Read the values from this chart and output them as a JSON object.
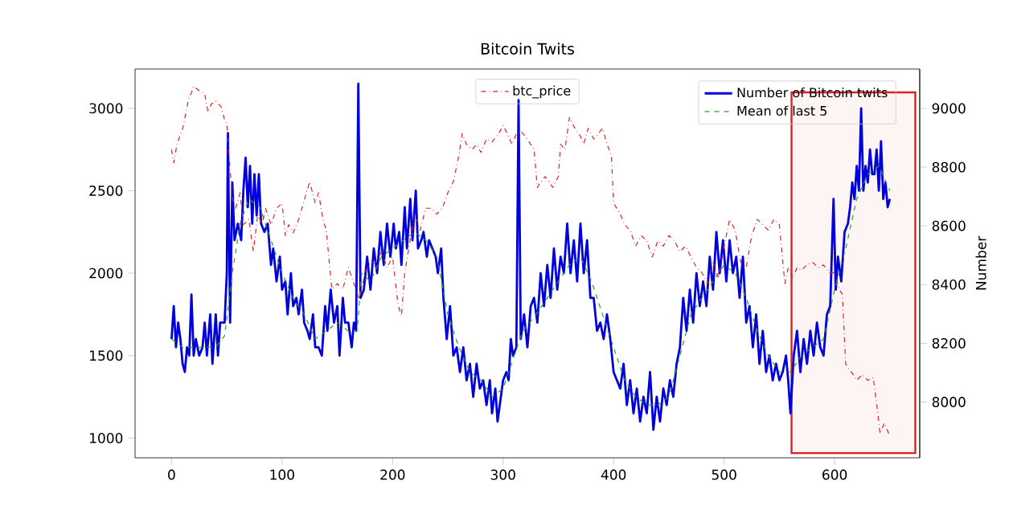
{
  "chart_data": {
    "type": "line",
    "title": "Bitcoin Twits",
    "y2label": "Number",
    "legend": "top right",
    "xlim": [
      -33,
      677
    ],
    "ylim": [
      880,
      3238
    ],
    "y2lim": [
      7810,
      9134
    ],
    "xticks": [
      0,
      100,
      200,
      300,
      400,
      500,
      600
    ],
    "yticks": [
      1000,
      1500,
      2000,
      2500,
      3000
    ],
    "y2ticks": [
      8000,
      8200,
      8400,
      8600,
      8800,
      9000
    ],
    "bands": [
      {
        "axis": "x",
        "from": 561,
        "to": 673,
        "color": "#e02020"
      }
    ],
    "series": [
      {
        "name": "btc_price",
        "color": "#d62728",
        "axis": "y2",
        "line_style": "dashdot",
        "x": [
          0,
          2,
          5,
          10,
          15,
          20,
          25,
          30,
          33,
          36,
          40,
          45,
          48,
          50,
          52,
          55,
          58,
          62,
          65,
          70,
          74,
          78,
          82,
          85,
          90,
          95,
          100,
          103,
          106,
          110,
          115,
          118,
          122,
          125,
          130,
          133,
          137,
          140,
          145,
          150,
          155,
          160,
          165,
          170,
          175,
          180,
          185,
          190,
          195,
          200,
          205,
          208,
          211,
          215,
          218,
          222,
          225,
          230,
          235,
          240,
          245,
          250,
          255,
          260,
          263,
          267,
          272,
          276,
          280,
          285,
          290,
          296,
          300,
          305,
          308,
          312,
          316,
          320,
          325,
          328,
          331,
          334,
          338,
          345,
          350,
          352,
          356,
          360,
          365,
          370,
          373,
          377,
          382,
          386,
          390,
          394,
          398,
          400,
          403,
          406,
          410,
          415,
          420,
          425,
          430,
          435,
          440,
          445,
          450,
          455,
          460,
          465,
          470,
          475,
          480,
          485,
          490,
          495,
          500,
          505,
          510,
          515,
          520,
          525,
          530,
          535,
          540,
          545,
          550,
          555,
          558,
          562,
          566,
          570,
          575,
          580,
          585,
          590,
          595,
          600,
          604,
          607,
          610,
          613,
          617,
          620,
          625,
          630,
          635,
          639,
          641,
          645,
          650
        ],
        "values": [
          8860,
          8815,
          8880,
          8930,
          9024,
          9075,
          9060,
          9050,
          8987,
          9015,
          9024,
          9005,
          8960,
          8950,
          8840,
          8695,
          8660,
          8713,
          8604,
          8622,
          8512,
          8640,
          8604,
          8660,
          8604,
          8660,
          8677,
          8567,
          8604,
          8576,
          8622,
          8660,
          8713,
          8750,
          8677,
          8713,
          8622,
          8585,
          8385,
          8403,
          8385,
          8458,
          8403,
          8348,
          8440,
          8476,
          8476,
          8512,
          8458,
          8494,
          8330,
          8293,
          8440,
          8530,
          8604,
          8622,
          8585,
          8660,
          8660,
          8640,
          8660,
          8713,
          8750,
          8841,
          8914,
          8877,
          8860,
          8877,
          8850,
          8896,
          8886,
          8914,
          8942,
          8905,
          8877,
          8914,
          8923,
          8905,
          8877,
          8860,
          8730,
          8750,
          8768,
          8731,
          8768,
          8878,
          8860,
          8969,
          8932,
          8905,
          8878,
          8932,
          8896,
          8914,
          8932,
          8878,
          8841,
          8677,
          8659,
          8640,
          8604,
          8585,
          8531,
          8567,
          8549,
          8494,
          8549,
          8531,
          8567,
          8549,
          8512,
          8531,
          8494,
          8458,
          8440,
          8403,
          8476,
          8421,
          8531,
          8622,
          8585,
          8476,
          8458,
          8567,
          8622,
          8604,
          8585,
          8622,
          8604,
          8403,
          8458,
          8421,
          8458,
          8449,
          8467,
          8476,
          8458,
          8467,
          8440,
          8440,
          8385,
          8367,
          8129,
          8111,
          8093,
          8074,
          8093,
          8074,
          8083,
          7965,
          7892,
          7928,
          7883
        ]
      },
      {
        "name": "Number of Bitcoin twits",
        "color": "#0000dd",
        "line_style": "solid",
        "x": [
          0,
          2,
          4,
          6,
          8,
          10,
          12,
          14,
          16,
          18,
          20,
          22,
          25,
          28,
          30,
          32,
          35,
          37,
          40,
          42,
          44,
          46,
          48,
          50,
          51,
          53,
          55,
          57,
          60,
          63,
          65,
          67,
          69,
          71,
          73,
          75,
          77,
          79,
          81,
          84,
          87,
          90,
          92,
          95,
          98,
          100,
          103,
          105,
          108,
          110,
          113,
          115,
          118,
          120,
          123,
          125,
          128,
          130,
          133,
          136,
          139,
          141,
          144,
          147,
          150,
          152,
          155,
          157,
          160,
          163,
          165,
          167,
          169,
          171,
          174,
          177,
          180,
          183,
          186,
          189,
          192,
          195,
          198,
          201,
          203,
          206,
          208,
          211,
          213,
          216,
          218,
          221,
          223,
          226,
          228,
          231,
          233,
          236,
          239,
          241,
          244,
          246,
          249,
          252,
          255,
          258,
          261,
          264,
          267,
          270,
          273,
          276,
          279,
          282,
          285,
          288,
          290,
          293,
          295,
          298,
          300,
          303,
          305,
          307,
          309,
          312,
          314,
          316,
          319,
          322,
          325,
          328,
          331,
          334,
          337,
          340,
          343,
          346,
          349,
          352,
          355,
          358,
          361,
          364,
          367,
          370,
          373,
          376,
          379,
          382,
          385,
          388,
          391,
          394,
          397,
          400,
          403,
          406,
          409,
          412,
          415,
          418,
          421,
          424,
          427,
          430,
          433,
          436,
          439,
          442,
          445,
          448,
          451,
          454,
          457,
          460,
          463,
          466,
          469,
          472,
          475,
          478,
          481,
          484,
          487,
          490,
          493,
          496,
          499,
          502,
          505,
          508,
          511,
          514,
          517,
          520,
          523,
          526,
          529,
          532,
          535,
          538,
          541,
          544,
          547,
          550,
          553,
          556,
          558,
          560,
          563,
          566,
          569,
          572,
          575,
          578,
          581,
          584,
          587,
          590,
          593,
          596,
          599,
          601,
          603,
          606,
          609,
          612,
          614,
          616,
          618,
          620,
          622,
          624,
          626,
          628,
          630,
          632,
          634,
          636,
          638,
          640,
          642,
          644,
          646,
          648,
          650
        ],
        "values": [
          1600,
          1800,
          1550,
          1700,
          1600,
          1450,
          1400,
          1550,
          1500,
          1870,
          1500,
          1600,
          1500,
          1550,
          1700,
          1500,
          1750,
          1450,
          1750,
          1500,
          1700,
          1700,
          1700,
          2000,
          2850,
          1700,
          2550,
          2200,
          2300,
          2200,
          2500,
          2700,
          2400,
          2650,
          2300,
          2600,
          2350,
          2600,
          2300,
          2250,
          2300,
          2050,
          2150,
          1950,
          2100,
          1900,
          1950,
          1750,
          2000,
          1800,
          1850,
          1750,
          1900,
          1700,
          1650,
          1600,
          1750,
          1550,
          1550,
          1500,
          1800,
          1650,
          1900,
          1700,
          1800,
          1500,
          1850,
          1700,
          1700,
          1550,
          1700,
          1650,
          3150,
          1850,
          1900,
          2100,
          1900,
          2150,
          2000,
          2250,
          2050,
          2300,
          2100,
          2300,
          2150,
          2250,
          2050,
          2400,
          2150,
          2450,
          2200,
          2500,
          2150,
          2200,
          2250,
          2100,
          2200,
          2150,
          2100,
          2000,
          2150,
          1850,
          1600,
          1800,
          1500,
          1550,
          1400,
          1550,
          1350,
          1450,
          1250,
          1450,
          1300,
          1350,
          1200,
          1350,
          1150,
          1300,
          1100,
          1250,
          1350,
          1400,
          1350,
          1600,
          1500,
          1550,
          3050,
          1600,
          1750,
          1550,
          1800,
          1850,
          1700,
          2000,
          1800,
          2050,
          1850,
          2150,
          1900,
          2100,
          2000,
          2300,
          2000,
          2200,
          1950,
          2300,
          2000,
          2200,
          1850,
          1850,
          1650,
          1700,
          1600,
          1750,
          1600,
          1400,
          1350,
          1300,
          1450,
          1200,
          1350,
          1150,
          1300,
          1100,
          1250,
          1150,
          1400,
          1050,
          1250,
          1100,
          1300,
          1200,
          1350,
          1250,
          1450,
          1550,
          1850,
          1650,
          1900,
          1700,
          2000,
          1800,
          1950,
          1800,
          2100,
          1900,
          2250,
          2000,
          2200,
          1950,
          2200,
          2000,
          2100,
          1850,
          2100,
          1700,
          1800,
          1550,
          1750,
          1450,
          1650,
          1400,
          1500,
          1350,
          1450,
          1350,
          1400,
          1500,
          1350,
          1150,
          1500,
          1650,
          1400,
          1600,
          1450,
          1650,
          1500,
          1700,
          1550,
          1500,
          1750,
          1800,
          2450,
          1900,
          2100,
          1950,
          2250,
          2300,
          2400,
          2550,
          2450,
          2650,
          2500,
          3000,
          2500,
          2650,
          2550,
          2750,
          2600,
          2600,
          2750,
          2500,
          2800,
          2450,
          2550,
          2400,
          2450
        ]
      },
      {
        "name": "Mean of last 5",
        "color": "#2ca02c",
        "line_style": "dashed",
        "x": [
          0,
          10,
          20,
          30,
          40,
          48,
          55,
          62,
          70,
          80,
          90,
          100,
          110,
          120,
          130,
          140,
          150,
          160,
          168,
          172,
          180,
          190,
          200,
          210,
          220,
          230,
          240,
          250,
          260,
          270,
          280,
          290,
          300,
          310,
          318,
          330,
          340,
          350,
          360,
          370,
          380,
          390,
          400,
          410,
          420,
          430,
          440,
          450,
          460,
          470,
          480,
          490,
          500,
          510,
          520,
          530,
          540,
          550,
          560,
          570,
          580,
          590,
          600,
          610,
          620,
          630,
          640,
          650
        ],
        "values": [
          1600,
          1550,
          1550,
          1550,
          1550,
          1620,
          2000,
          2300,
          2450,
          2400,
          2200,
          2000,
          1850,
          1750,
          1600,
          1650,
          1700,
          1650,
          1650,
          2000,
          1950,
          2100,
          2150,
          2200,
          2250,
          2200,
          2100,
          1750,
          1550,
          1400,
          1350,
          1250,
          1300,
          1500,
          1650,
          1750,
          1850,
          1950,
          2050,
          2100,
          1950,
          1750,
          1550,
          1350,
          1250,
          1200,
          1200,
          1250,
          1500,
          1750,
          1850,
          1950,
          2050,
          2000,
          1850,
          1650,
          1500,
          1400,
          1400,
          1500,
          1550,
          1600,
          1900,
          2150,
          2450,
          2600,
          2650,
          2500
        ]
      }
    ]
  }
}
